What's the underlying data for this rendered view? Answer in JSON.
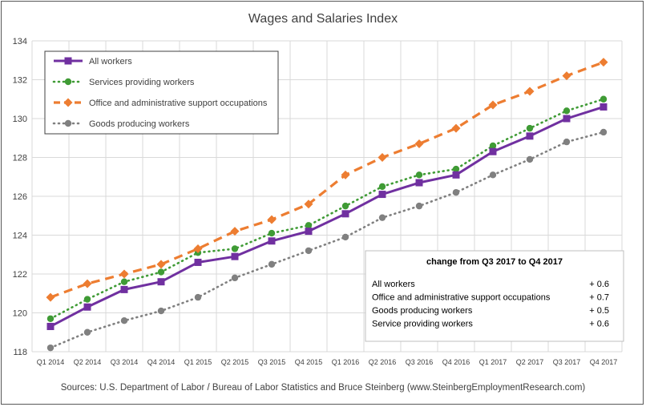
{
  "chart_data": {
    "type": "line",
    "title": "Wages and Salaries Index",
    "categories": [
      "Q1 2014",
      "Q2 2014",
      "Q3 2014",
      "Q4 2014",
      "Q1 2015",
      "Q2 2015",
      "Q3 2015",
      "Q4 2015",
      "Q1 2016",
      "Q2 2016",
      "Q3 2016",
      "Q4 2016",
      "Q1 2017",
      "Q2 2017",
      "Q3 2017",
      "Q4 2017"
    ],
    "ylim": [
      118,
      134
    ],
    "yticks": [
      118,
      120,
      122,
      124,
      126,
      128,
      130,
      132,
      134
    ],
    "grid": true,
    "legend_position": "top-left",
    "series": [
      {
        "name": "All workers",
        "color": "#7030a0",
        "style": "solid-square",
        "values": [
          119.3,
          120.3,
          121.2,
          121.6,
          122.6,
          122.9,
          123.7,
          124.2,
          125.1,
          126.1,
          126.7,
          127.1,
          128.3,
          129.1,
          130.0,
          130.6
        ]
      },
      {
        "name": "Services providing workers",
        "color": "#3f9b35",
        "style": "dotted-circle",
        "values": [
          119.7,
          120.7,
          121.6,
          122.1,
          123.1,
          123.3,
          124.1,
          124.5,
          125.5,
          126.5,
          127.1,
          127.4,
          128.6,
          129.5,
          130.4,
          131.0
        ]
      },
      {
        "name": "Office and administrative support occupations",
        "color": "#ed7d31",
        "style": "dashed-diamond",
        "values": [
          120.8,
          121.5,
          122.0,
          122.5,
          123.3,
          124.2,
          124.8,
          125.6,
          127.1,
          128.0,
          128.7,
          129.5,
          130.7,
          131.4,
          132.2,
          132.9
        ]
      },
      {
        "name": "Goods producing workers",
        "color": "#808080",
        "style": "dotted-circle",
        "values": [
          118.2,
          119.0,
          119.6,
          120.1,
          120.8,
          121.8,
          122.5,
          123.2,
          123.9,
          124.9,
          125.5,
          126.2,
          127.1,
          127.9,
          128.8,
          129.3
        ]
      }
    ],
    "change_box": {
      "title": "change from Q3 2017 to Q4 2017",
      "rows": [
        {
          "label": "All workers",
          "value": "+ 0.6"
        },
        {
          "label": "Office and administrative support occupations",
          "value": "+ 0.7"
        },
        {
          "label": "Goods producing workers",
          "value": "+ 0.5"
        },
        {
          "label": "Service providing workers",
          "value": "+ 0.6"
        }
      ]
    },
    "source": "Sources: U.S. Department of Labor / Bureau of Labor Statistics and Bruce Steinberg (www.SteinbergEmploymentResearch.com)"
  }
}
